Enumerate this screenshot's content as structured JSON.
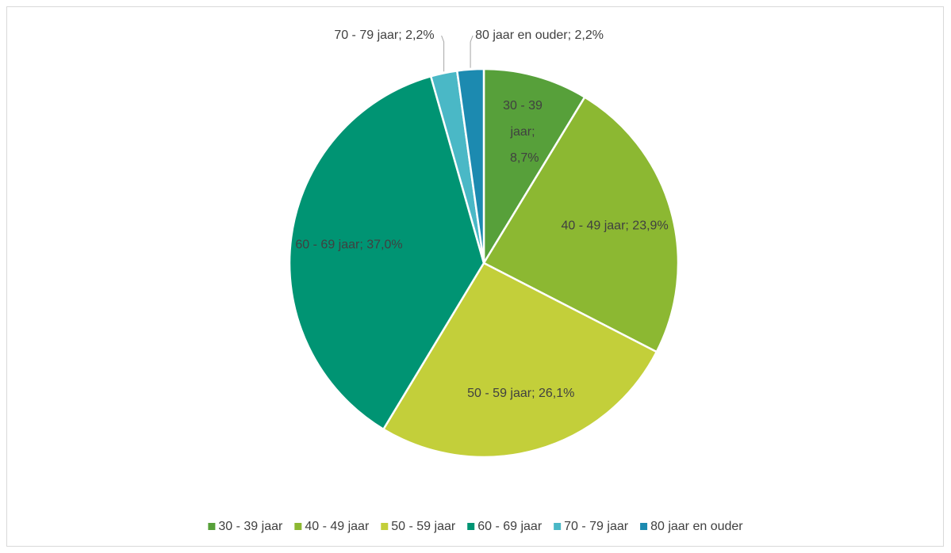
{
  "chart_data": {
    "type": "pie",
    "categories": [
      "30 - 39 jaar",
      "40 - 49 jaar",
      "50 - 59 jaar",
      "60 - 69 jaar",
      "70 - 79 jaar",
      "80 jaar en ouder"
    ],
    "values": [
      8.7,
      23.9,
      26.1,
      37.0,
      2.2,
      2.2
    ],
    "value_labels": [
      "30 - 39 jaar; 8,7%",
      "40 - 49 jaar; 23,9%",
      "50 - 59 jaar; 26,1%",
      "60 - 69 jaar; 37,0%",
      "70 - 79 jaar; 2,2%",
      "80 jaar en ouder; 2,2%"
    ],
    "colors": [
      "#57a03a",
      "#8cb832",
      "#c3cf3a",
      "#009473",
      "#4ab8c6",
      "#1c8ab0"
    ],
    "legend": "bottom"
  }
}
